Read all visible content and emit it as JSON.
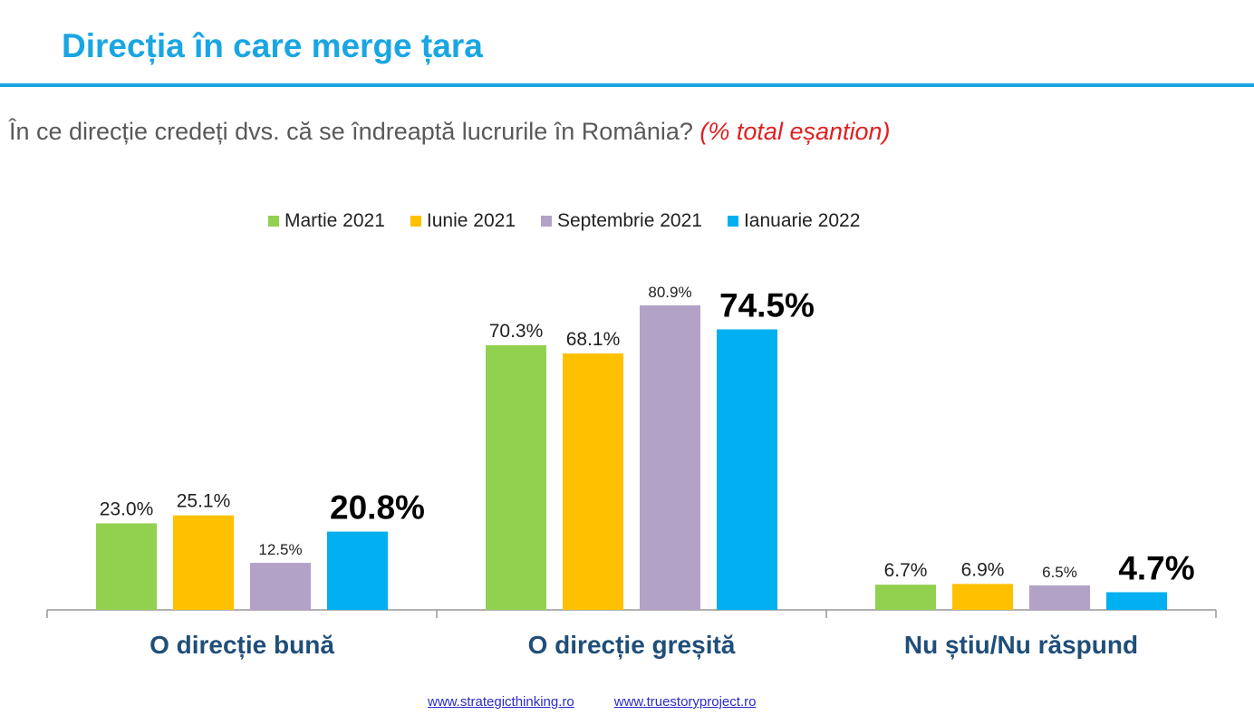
{
  "title": "Direcția în care merge țara",
  "subtitle": {
    "question": "În ce direcție credeți dvs. că se îndreaptă lucrurile în România?",
    "note": "(% total eșantion)"
  },
  "footer": {
    "links": [
      "www.strategicthinking.ro",
      "www.truestoryproject.ro"
    ]
  },
  "colors": {
    "title": "#19a6e2",
    "category_label": "#1f4e79"
  },
  "chart_data": {
    "type": "bar",
    "categories": [
      "O direcție bună",
      "O direcție greșită",
      "Nu știu/Nu răspund"
    ],
    "series": [
      {
        "name": "Martie 2021",
        "color": "#92d050",
        "values": [
          23.0,
          70.3,
          6.7
        ],
        "labels": [
          "23.0%",
          "70.3%",
          "6.7%"
        ]
      },
      {
        "name": "Iunie 2021",
        "color": "#ffc000",
        "values": [
          25.1,
          68.1,
          6.9
        ],
        "labels": [
          "25.1%",
          "68.1%",
          "6.9%"
        ]
      },
      {
        "name": "Septembrie 2021",
        "color": "#b3a2c7",
        "values": [
          12.5,
          80.9,
          6.5
        ],
        "labels": [
          "12.5%",
          "80.9%",
          "6.5%"
        ]
      },
      {
        "name": "Ianuarie 2022",
        "color": "#00b0f0",
        "values": [
          20.8,
          74.5,
          4.7
        ],
        "labels": [
          "20.8%",
          "74.5%",
          "4.7%"
        ],
        "emphasized": true
      }
    ],
    "legend": "top",
    "grid": false,
    "ylim": [
      0,
      81
    ]
  }
}
